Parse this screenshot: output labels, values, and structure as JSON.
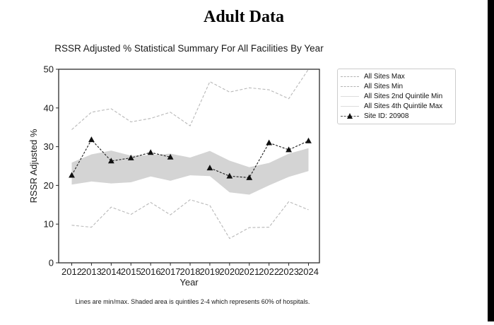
{
  "page": {
    "title": "Adult Data"
  },
  "chart": {
    "title": "RSSR Adjusted % Statistical Summary For All Facilities By Year",
    "footnote": "Lines are min/max. Shaded area is quintiles 2-4 which represents 60% of hospitals."
  },
  "legend": {
    "items": [
      {
        "label": "All Sites Max",
        "style": "dashed-gray"
      },
      {
        "label": "All Sites Min",
        "style": "dashed-gray"
      },
      {
        "label": "All Sites 2nd Quintile Min",
        "style": "solid-light"
      },
      {
        "label": "All Sites 4th Quintile Max",
        "style": "solid-light"
      },
      {
        "label": "Site ID: 20908",
        "style": "black-dash-triangle"
      }
    ]
  },
  "chart_data": {
    "type": "line",
    "title": "RSSR Adjusted % Statistical Summary For All Facilities By Year",
    "xlabel": "Year",
    "ylabel": "RSSR Adjusted %",
    "ylim": [
      0,
      50
    ],
    "yticks": [
      0,
      10,
      20,
      30,
      40,
      50
    ],
    "grid": false,
    "legend_position": "outside-right",
    "band_fill": "#d4d4d4",
    "categories": [
      2012,
      2013,
      2014,
      2015,
      2016,
      2017,
      2018,
      2019,
      2020,
      2021,
      2022,
      2023,
      2024
    ],
    "series": [
      {
        "name": "All Sites Max",
        "role": "line",
        "color": "#b8b8b8",
        "dash": "4 2.5",
        "values": [
          34.4,
          38.9,
          39.8,
          36.4,
          37.3,
          38.9,
          35.4,
          46.8,
          44.1,
          45.2,
          44.7,
          42.4,
          50.0
        ]
      },
      {
        "name": "All Sites Min",
        "role": "line",
        "color": "#b8b8b8",
        "dash": "4 2.5",
        "values": [
          9.7,
          9.2,
          14.4,
          12.5,
          15.6,
          12.4,
          16.3,
          14.8,
          6.3,
          9.1,
          9.2,
          15.8,
          13.7
        ]
      },
      {
        "name": "All Sites 4th Quintile Max",
        "role": "band-upper",
        "color": "#d4d4d4",
        "values": [
          25.9,
          28.0,
          29.0,
          27.7,
          27.8,
          28.2,
          27.2,
          28.9,
          26.4,
          24.7,
          25.8,
          28.2,
          29.6
        ]
      },
      {
        "name": "All Sites 2nd Quintile Min",
        "role": "band-lower",
        "color": "#d4d4d4",
        "values": [
          20.2,
          21.0,
          20.5,
          20.8,
          22.3,
          21.2,
          22.6,
          22.4,
          18.2,
          17.6,
          20.0,
          22.2,
          23.7
        ]
      },
      {
        "name": "Site ID: 20908",
        "role": "site",
        "color": "#1c1c1c",
        "dash": "3 2",
        "marker": "triangle",
        "values": [
          22.6,
          31.8,
          26.3,
          27.1,
          28.5,
          27.3,
          null,
          24.5,
          22.4,
          22.0,
          31.0,
          29.2,
          31.5
        ]
      }
    ]
  }
}
